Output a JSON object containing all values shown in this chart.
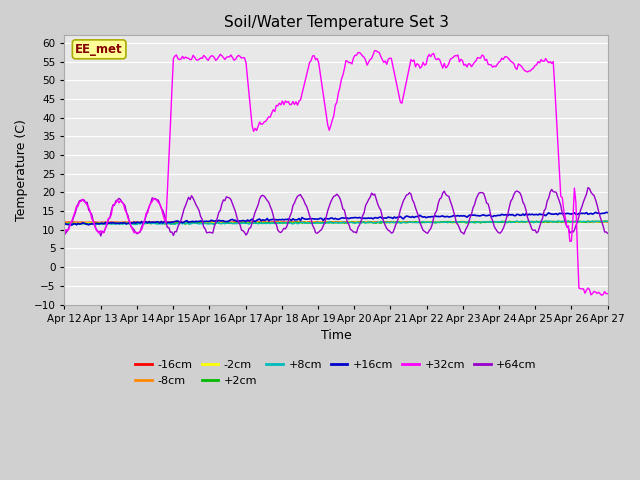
{
  "title": "Soil/Water Temperature Set 3",
  "xlabel": "Time",
  "ylabel": "Temperature (C)",
  "ylim": [
    -10,
    62
  ],
  "yticks": [
    -10,
    -5,
    0,
    5,
    10,
    15,
    20,
    25,
    30,
    35,
    40,
    45,
    50,
    55,
    60
  ],
  "fig_bg": "#d0d0d0",
  "plot_bg": "#e8e8e8",
  "legend_labels": [
    "-16cm",
    "-8cm",
    "-2cm",
    "+2cm",
    "+8cm",
    "+16cm",
    "+32cm",
    "+64cm"
  ],
  "legend_colors": [
    "#ff0000",
    "#ff8800",
    "#ffff00",
    "#00bb00",
    "#00bbbb",
    "#0000cc",
    "#ff00ff",
    "#9900cc"
  ],
  "annotation_text": "EE_met",
  "annotation_fg": "#880000",
  "annotation_bg": "#ffff99",
  "annotation_border": "#aaaa00"
}
